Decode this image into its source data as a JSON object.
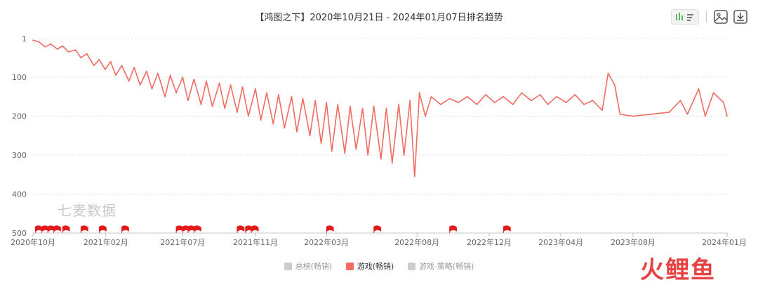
{
  "header": {
    "title": "【鸿图之下】2020年10月21日 - 2024年01月07日排名趋势"
  },
  "toolbar": {
    "icons": [
      "bar-line-toggle-icon",
      "image-save-icon",
      "download-icon"
    ],
    "active_color": "#5bb56a"
  },
  "watermark": {
    "text": "七麦数据"
  },
  "brand": {
    "text": "火鲤鱼"
  },
  "legend": [
    {
      "label": "总榜(畅销)",
      "color": "#cccccc",
      "active": false
    },
    {
      "label": "游戏(畅销)",
      "color": "#f06b61",
      "active": true
    },
    {
      "label": "游戏-策略(畅销)",
      "color": "#cccccc",
      "active": false
    }
  ],
  "chart_data": {
    "type": "line",
    "title": "【鸿图之下】2020年10月21日 - 2024年01月07日排名趋势",
    "y_inverted": true,
    "ylim": [
      1,
      500
    ],
    "y_ticks": [
      "1",
      "100",
      "200",
      "300",
      "400",
      "500"
    ],
    "y_tick_values": [
      1,
      100,
      200,
      300,
      400,
      500
    ],
    "x_start": "2020-10-21",
    "x_end": "2024-01-07",
    "x_ticks": [
      "2020年10月",
      "2021年02月",
      "2021年07月",
      "2021年11月",
      "2022年03月",
      "2022年08月",
      "2022年12月",
      "2023年04月",
      "2023年08月",
      "2024年01月"
    ],
    "x_tick_dates": [
      "2020-10-21",
      "2021-02-21",
      "2021-07-01",
      "2021-11-01",
      "2022-03-01",
      "2022-08-01",
      "2022-12-01",
      "2023-04-01",
      "2023-08-01",
      "2024-01-07"
    ],
    "grid": true,
    "legend_position": "bottom-center",
    "series": [
      {
        "name": "游戏(畅销)",
        "color": "#f06b61",
        "points": [
          [
            "2020-10-21",
            5
          ],
          [
            "2020-11-01",
            10
          ],
          [
            "2020-11-10",
            22
          ],
          [
            "2020-11-20",
            15
          ],
          [
            "2020-12-01",
            28
          ],
          [
            "2020-12-10",
            20
          ],
          [
            "2020-12-20",
            35
          ],
          [
            "2021-01-01",
            30
          ],
          [
            "2021-01-10",
            50
          ],
          [
            "2021-01-20",
            40
          ],
          [
            "2021-02-01",
            70
          ],
          [
            "2021-02-10",
            55
          ],
          [
            "2021-02-20",
            80
          ],
          [
            "2021-03-01",
            60
          ],
          [
            "2021-03-10",
            95
          ],
          [
            "2021-03-20",
            70
          ],
          [
            "2021-04-01",
            110
          ],
          [
            "2021-04-10",
            75
          ],
          [
            "2021-04-20",
            120
          ],
          [
            "2021-05-01",
            85
          ],
          [
            "2021-05-10",
            130
          ],
          [
            "2021-05-20",
            90
          ],
          [
            "2021-06-01",
            150
          ],
          [
            "2021-06-10",
            95
          ],
          [
            "2021-06-20",
            140
          ],
          [
            "2021-07-01",
            100
          ],
          [
            "2021-07-10",
            160
          ],
          [
            "2021-07-20",
            105
          ],
          [
            "2021-08-01",
            170
          ],
          [
            "2021-08-10",
            110
          ],
          [
            "2021-08-20",
            175
          ],
          [
            "2021-09-01",
            115
          ],
          [
            "2021-09-10",
            180
          ],
          [
            "2021-09-20",
            120
          ],
          [
            "2021-10-01",
            190
          ],
          [
            "2021-10-10",
            125
          ],
          [
            "2021-10-20",
            200
          ],
          [
            "2021-11-01",
            130
          ],
          [
            "2021-11-10",
            210
          ],
          [
            "2021-11-20",
            140
          ],
          [
            "2021-12-01",
            220
          ],
          [
            "2021-12-10",
            145
          ],
          [
            "2021-12-20",
            230
          ],
          [
            "2022-01-01",
            150
          ],
          [
            "2022-01-10",
            240
          ],
          [
            "2022-01-20",
            155
          ],
          [
            "2022-02-01",
            250
          ],
          [
            "2022-02-10",
            160
          ],
          [
            "2022-02-20",
            270
          ],
          [
            "2022-03-01",
            165
          ],
          [
            "2022-03-10",
            290
          ],
          [
            "2022-03-20",
            170
          ],
          [
            "2022-04-01",
            295
          ],
          [
            "2022-04-10",
            175
          ],
          [
            "2022-04-20",
            285
          ],
          [
            "2022-05-01",
            180
          ],
          [
            "2022-05-10",
            300
          ],
          [
            "2022-05-20",
            175
          ],
          [
            "2022-06-01",
            310
          ],
          [
            "2022-06-10",
            180
          ],
          [
            "2022-06-20",
            320
          ],
          [
            "2022-07-01",
            170
          ],
          [
            "2022-07-10",
            300
          ],
          [
            "2022-07-20",
            160
          ],
          [
            "2022-07-28",
            355
          ],
          [
            "2022-08-05",
            140
          ],
          [
            "2022-08-15",
            200
          ],
          [
            "2022-08-25",
            150
          ],
          [
            "2022-09-10",
            170
          ],
          [
            "2022-09-25",
            155
          ],
          [
            "2022-10-10",
            165
          ],
          [
            "2022-10-25",
            150
          ],
          [
            "2022-11-10",
            170
          ],
          [
            "2022-11-25",
            145
          ],
          [
            "2022-12-10",
            165
          ],
          [
            "2022-12-25",
            150
          ],
          [
            "2023-01-10",
            170
          ],
          [
            "2023-01-25",
            140
          ],
          [
            "2023-02-10",
            160
          ],
          [
            "2023-02-25",
            145
          ],
          [
            "2023-03-10",
            170
          ],
          [
            "2023-03-25",
            150
          ],
          [
            "2023-04-10",
            165
          ],
          [
            "2023-04-25",
            145
          ],
          [
            "2023-05-10",
            170
          ],
          [
            "2023-05-25",
            160
          ],
          [
            "2023-06-10",
            185
          ],
          [
            "2023-06-20",
            90
          ],
          [
            "2023-07-01",
            120
          ],
          [
            "2023-07-10",
            195
          ],
          [
            "2023-08-01",
            200
          ],
          [
            "2023-09-01",
            195
          ],
          [
            "2023-10-01",
            190
          ],
          [
            "2023-10-20",
            160
          ],
          [
            "2023-11-01",
            195
          ],
          [
            "2023-11-20",
            130
          ],
          [
            "2023-12-01",
            200
          ],
          [
            "2023-12-15",
            140
          ],
          [
            "2024-01-01",
            165
          ],
          [
            "2024-01-07",
            200
          ]
        ]
      }
    ],
    "event_flags": [
      "2020-10-25",
      "2020-11-05",
      "2020-11-15",
      "2020-11-25",
      "2020-12-10",
      "2021-01-10",
      "2021-02-10",
      "2021-03-20",
      "2021-06-20",
      "2021-07-01",
      "2021-07-10",
      "2021-07-20",
      "2021-10-01",
      "2021-10-15",
      "2021-10-25",
      "2022-03-01",
      "2022-05-20",
      "2022-09-25",
      "2022-12-25"
    ],
    "flag_color": "#e41b1b"
  }
}
